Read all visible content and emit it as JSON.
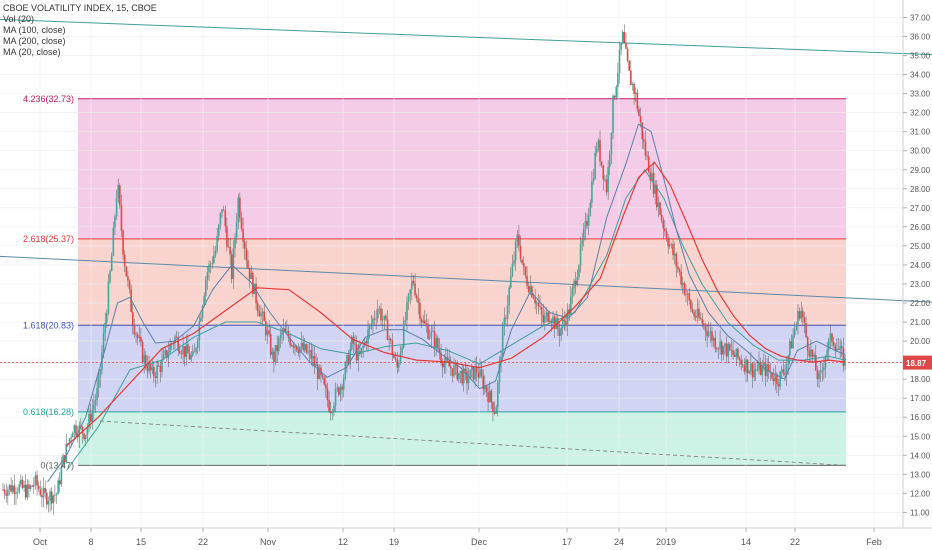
{
  "legend": {
    "title": "CBOE VOLATILITY INDEX, 15, CBOE",
    "studies": [
      "Vol (20)",
      "MA (100, close)",
      "MA (200, close)",
      "MA (20, close)"
    ]
  },
  "price_badge": {
    "value": "18.87",
    "color": "#e04848"
  },
  "colors": {
    "up": "#3fa89a",
    "down": "#e04848",
    "ma_red": "#e53935",
    "ma_blue": "#5b7fa8",
    "ma_teal": "#3f9f9a",
    "trend": "#3f9f9a",
    "trend2": "#5b8aa8",
    "dash": "#777777"
  },
  "chart_data": {
    "type": "candlestick",
    "title": "CBOE VOLATILITY INDEX, 15, CBOE",
    "ylim": [
      10.0,
      37.5
    ],
    "y_ticks": [
      "11.00",
      "12.00",
      "13.00",
      "14.00",
      "15.00",
      "16.00",
      "17.00",
      "18.00",
      "19.00",
      "20.00",
      "21.00",
      "22.00",
      "23.00",
      "24.00",
      "25.00",
      "26.00",
      "27.00",
      "28.00",
      "29.00",
      "30.00",
      "31.00",
      "32.00",
      "33.00",
      "34.00",
      "35.00",
      "36.00",
      "37.00"
    ],
    "x_ticks": [
      "Oct",
      "8",
      "15",
      "22",
      "Nov",
      "12",
      "19",
      "Dec",
      "17",
      "24",
      "2019",
      "14",
      "22",
      "Feb"
    ],
    "fib_levels": [
      {
        "label": "4.236(32.73)",
        "value": 32.73,
        "color": "#c2185b"
      },
      {
        "label": "2.618(25.37)",
        "value": 25.37,
        "color": "#e53935"
      },
      {
        "label": "1.618(20.83)",
        "value": 20.83,
        "color": "#3f51b5"
      },
      {
        "label": "0.618(16.28)",
        "value": 16.28,
        "color": "#26a69a"
      },
      {
        "label": "0(13.47)",
        "value": 13.47,
        "color": "#666666"
      }
    ],
    "price_path": [
      [
        0,
        12.2
      ],
      [
        4,
        12.4
      ],
      [
        8,
        12.1
      ],
      [
        10,
        12.6
      ],
      [
        13,
        11.8
      ],
      [
        17,
        12.0
      ],
      [
        19,
        13.8
      ],
      [
        22,
        15.5
      ],
      [
        26,
        15.2
      ],
      [
        30,
        17.5
      ],
      [
        34,
        24.0
      ],
      [
        36,
        28.3
      ],
      [
        38,
        24.5
      ],
      [
        41,
        21.0
      ],
      [
        44,
        19.2
      ],
      [
        47,
        18.2
      ],
      [
        50,
        18.8
      ],
      [
        54,
        20.2
      ],
      [
        57,
        19.5
      ],
      [
        60,
        19.0
      ],
      [
        64,
        23.5
      ],
      [
        67,
        24.8
      ],
      [
        69,
        27.2
      ],
      [
        72,
        23.5
      ],
      [
        74,
        27.5
      ],
      [
        77,
        24.0
      ],
      [
        80,
        22.0
      ],
      [
        83,
        20.5
      ],
      [
        85,
        19.0
      ],
      [
        88,
        20.5
      ],
      [
        91,
        20.0
      ],
      [
        94,
        19.6
      ],
      [
        97,
        19.2
      ],
      [
        100,
        18.0
      ],
      [
        103,
        16.5
      ],
      [
        107,
        18.0
      ],
      [
        110,
        20.0
      ],
      [
        112,
        19.0
      ],
      [
        115,
        20.5
      ],
      [
        118,
        21.8
      ],
      [
        121,
        20.5
      ],
      [
        124,
        18.5
      ],
      [
        127,
        21.5
      ],
      [
        129,
        23.3
      ],
      [
        132,
        21.0
      ],
      [
        136,
        20.0
      ],
      [
        139,
        18.8
      ],
      [
        142,
        18.5
      ],
      [
        146,
        18.0
      ],
      [
        149,
        18.5
      ],
      [
        152,
        17.5
      ],
      [
        155,
        16.3
      ],
      [
        157,
        20.0
      ],
      [
        160,
        23.5
      ],
      [
        162,
        25.5
      ],
      [
        164,
        23.5
      ],
      [
        167,
        22.5
      ],
      [
        170,
        21.0
      ],
      [
        172,
        21.5
      ],
      [
        175,
        20.5
      ],
      [
        178,
        21.5
      ],
      [
        181,
        24.0
      ],
      [
        184,
        26.5
      ],
      [
        187,
        30.5
      ],
      [
        190,
        28.0
      ],
      [
        192,
        32.5
      ],
      [
        195,
        36.0
      ],
      [
        197,
        34.0
      ],
      [
        199,
        33.0
      ],
      [
        202,
        30.0
      ],
      [
        205,
        28.0
      ],
      [
        208,
        26.0
      ],
      [
        211,
        24.5
      ],
      [
        214,
        23.0
      ],
      [
        217,
        21.5
      ],
      [
        220,
        21.0
      ],
      [
        224,
        20.0
      ],
      [
        228,
        19.5
      ],
      [
        232,
        19.0
      ],
      [
        236,
        18.5
      ],
      [
        240,
        18.5
      ],
      [
        244,
        18.0
      ],
      [
        246,
        18.5
      ],
      [
        249,
        20.5
      ],
      [
        251,
        21.8
      ],
      [
        253,
        20.0
      ],
      [
        255,
        19.0
      ],
      [
        257,
        17.8
      ],
      [
        259,
        19.5
      ],
      [
        261,
        20.2
      ],
      [
        263,
        19.5
      ],
      [
        265,
        18.87
      ]
    ],
    "ma_red_path": [
      [
        20,
        14.5
      ],
      [
        30,
        16.0
      ],
      [
        40,
        17.8
      ],
      [
        50,
        19.6
      ],
      [
        60,
        20.4
      ],
      [
        70,
        21.6
      ],
      [
        80,
        22.8
      ],
      [
        90,
        22.7
      ],
      [
        100,
        21.5
      ],
      [
        110,
        20.1
      ],
      [
        120,
        19.4
      ],
      [
        130,
        19.0
      ],
      [
        140,
        18.9
      ],
      [
        150,
        18.6
      ],
      [
        160,
        19.1
      ],
      [
        170,
        20.2
      ],
      [
        180,
        21.8
      ],
      [
        188,
        23.3
      ],
      [
        195,
        26.5
      ],
      [
        200,
        28.6
      ],
      [
        205,
        29.4
      ],
      [
        210,
        28.2
      ],
      [
        215,
        26.3
      ],
      [
        220,
        24.3
      ],
      [
        225,
        22.6
      ],
      [
        230,
        21.3
      ],
      [
        235,
        20.3
      ],
      [
        240,
        19.6
      ],
      [
        245,
        19.2
      ],
      [
        250,
        19.0
      ],
      [
        255,
        18.9
      ],
      [
        260,
        19.0
      ],
      [
        265,
        18.9
      ]
    ],
    "ma_blue_path": [
      [
        14,
        12.6
      ],
      [
        20,
        14.0
      ],
      [
        26,
        16.0
      ],
      [
        32,
        19.5
      ],
      [
        36,
        22.0
      ],
      [
        40,
        22.3
      ],
      [
        44,
        21.0
      ],
      [
        48,
        19.9
      ],
      [
        54,
        20.0
      ],
      [
        60,
        20.8
      ],
      [
        66,
        22.7
      ],
      [
        72,
        24.0
      ],
      [
        78,
        23.1
      ],
      [
        84,
        21.5
      ],
      [
        90,
        20.2
      ],
      [
        96,
        19.0
      ],
      [
        102,
        18.1
      ],
      [
        108,
        18.6
      ],
      [
        114,
        20.2
      ],
      [
        120,
        20.6
      ],
      [
        126,
        20.6
      ],
      [
        132,
        20.1
      ],
      [
        138,
        19.3
      ],
      [
        144,
        18.6
      ],
      [
        150,
        17.5
      ],
      [
        155,
        17.9
      ],
      [
        160,
        20.6
      ],
      [
        166,
        22.6
      ],
      [
        172,
        21.5
      ],
      [
        178,
        21.2
      ],
      [
        184,
        22.3
      ],
      [
        190,
        26.5
      ],
      [
        196,
        29.3
      ],
      [
        200,
        31.4
      ],
      [
        204,
        31.0
      ],
      [
        208,
        28.5
      ],
      [
        212,
        25.8
      ],
      [
        216,
        23.5
      ],
      [
        222,
        21.5
      ],
      [
        228,
        20.3
      ],
      [
        234,
        19.5
      ],
      [
        240,
        18.5
      ],
      [
        246,
        18.0
      ],
      [
        250,
        19.5
      ],
      [
        256,
        20.0
      ],
      [
        262,
        19.5
      ],
      [
        265,
        19.3
      ]
    ],
    "ma_teal_path": [
      [
        20,
        13.2
      ],
      [
        30,
        15.5
      ],
      [
        40,
        18.5
      ],
      [
        50,
        19.0
      ],
      [
        60,
        20.2
      ],
      [
        70,
        21.0
      ],
      [
        80,
        21.0
      ],
      [
        90,
        20.4
      ],
      [
        100,
        19.6
      ],
      [
        110,
        19.3
      ],
      [
        120,
        19.7
      ],
      [
        130,
        19.9
      ],
      [
        140,
        19.5
      ],
      [
        150,
        18.8
      ],
      [
        160,
        19.8
      ],
      [
        170,
        20.8
      ],
      [
        180,
        21.5
      ],
      [
        190,
        24.5
      ],
      [
        196,
        27.5
      ],
      [
        202,
        29.0
      ],
      [
        208,
        27.5
      ],
      [
        214,
        25.0
      ],
      [
        220,
        23.0
      ],
      [
        228,
        21.0
      ],
      [
        236,
        19.8
      ],
      [
        244,
        19.0
      ],
      [
        252,
        19.0
      ],
      [
        260,
        19.2
      ],
      [
        265,
        19.0
      ]
    ]
  }
}
